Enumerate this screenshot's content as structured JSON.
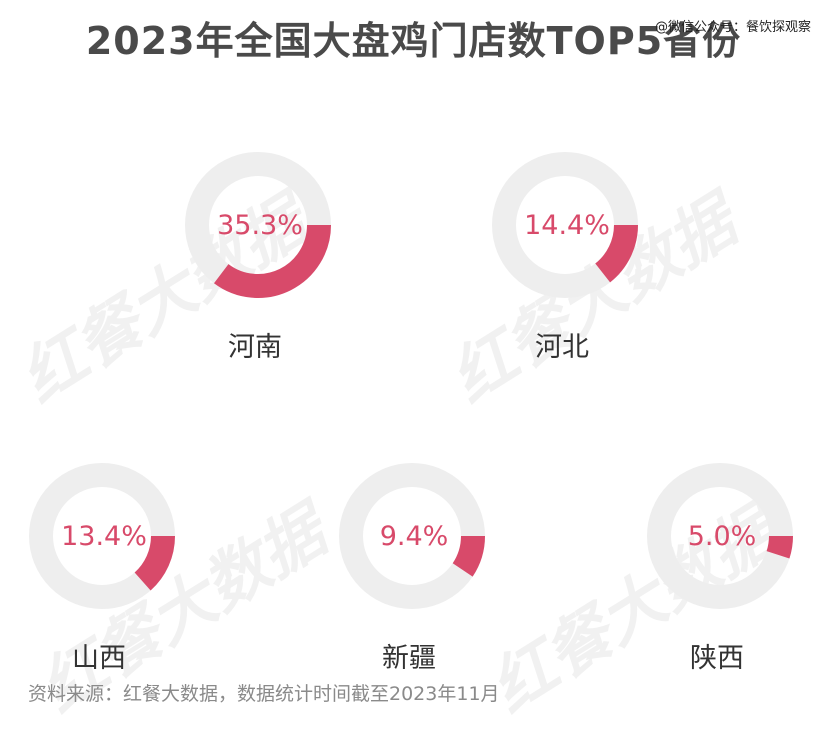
{
  "title": "2023年全国大盘鸡门店数TOP5省份",
  "credit": "@微信公众号：餐饮探观察",
  "watermark": "红餐大数据",
  "source": "资料来源：红餐大数据，数据统计时间截至2023年11月",
  "colors": {
    "accent": "#d84a6a",
    "track": "#eeeeee"
  },
  "chart_data": {
    "type": "pie",
    "title": "2023年全国大盘鸡门店数TOP5省份",
    "categories": [
      "河南",
      "河北",
      "山西",
      "新疆",
      "陕西"
    ],
    "values": [
      35.3,
      14.4,
      13.4,
      9.4,
      5.0
    ],
    "labels": [
      "35.3%",
      "14.4%",
      "13.4%",
      "9.4%",
      "5.0%"
    ],
    "unit": "%"
  }
}
